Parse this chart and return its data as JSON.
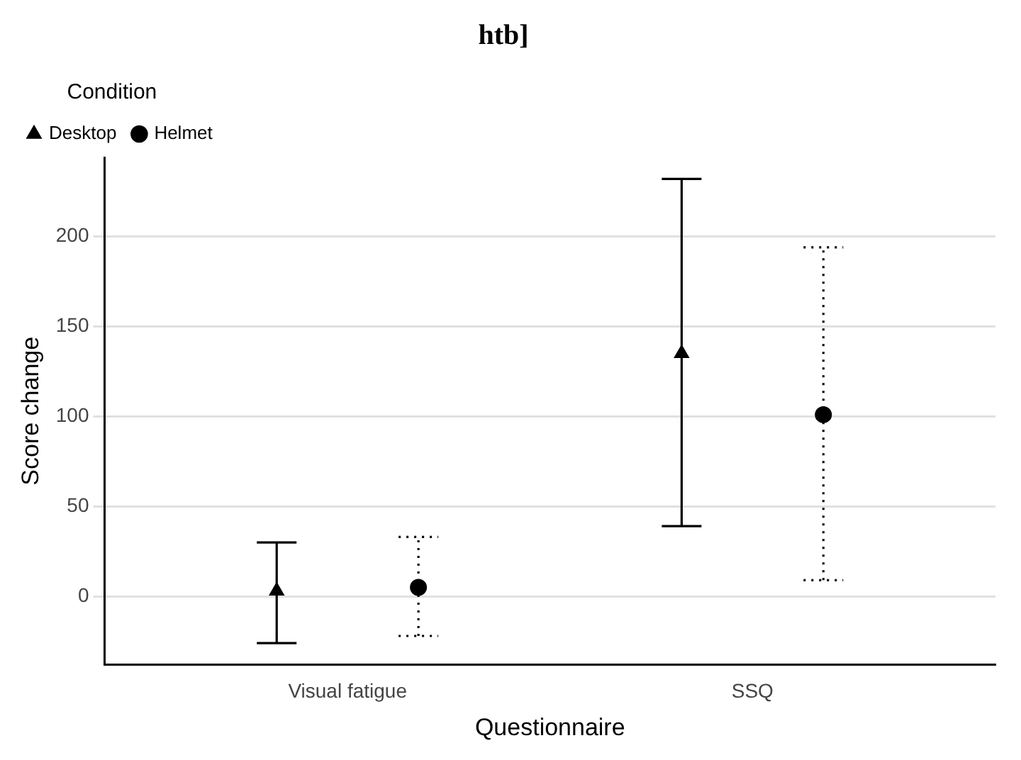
{
  "chart_data": {
    "type": "scatter",
    "title": "htb]",
    "xlabel": "Questionnaire",
    "ylabel": "Score change",
    "legend_title": "Condition",
    "categories": [
      "Visual fatigue",
      "SSQ"
    ],
    "series": [
      {
        "name": "Desktop",
        "color": "#000000",
        "marker": "triangle",
        "line_style": "solid",
        "values": [
          3,
          135
        ],
        "errors": [
          [
            -26,
            30
          ],
          [
            39,
            232
          ]
        ]
      },
      {
        "name": "Helmet",
        "color": "#000000",
        "marker": "circle",
        "line_style": "dotted",
        "values": [
          5,
          101
        ],
        "errors": [
          [
            -22,
            33
          ],
          [
            9,
            194
          ]
        ]
      }
    ],
    "ylim": [
      -38,
      244
    ],
    "yticks": [
      0,
      50,
      100,
      150,
      200
    ],
    "grid": "y",
    "legend": "top left"
  }
}
